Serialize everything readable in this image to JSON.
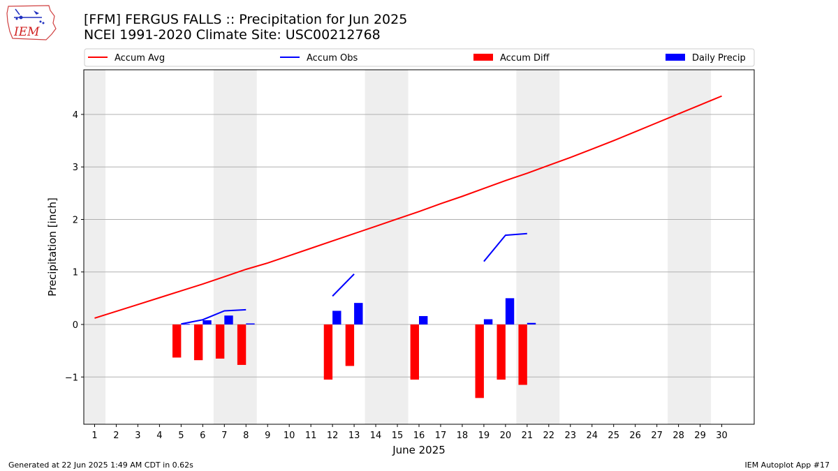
{
  "header": {
    "title": "[FFM] FERGUS FALLS :: Precipitation for Jun 2025",
    "subtitle": "NCEI 1991-2020 Climate Site: USC00212768",
    "logo_text": "IEM",
    "logo_icon": "iowa-state-outline-weather-icon"
  },
  "footer": {
    "generated": "Generated at 22 Jun 2025 1:49 AM CDT in 0.62s",
    "app": "IEM Autoplot App #17"
  },
  "colors": {
    "accum_avg": "#ff0000",
    "accum_obs": "#0000ff",
    "accum_diff": "#ff0000",
    "daily_precip": "#0000ff",
    "weekend_shade": "#eeeeee",
    "grid": "#b0b0b0"
  },
  "chart_data": {
    "type": "bar",
    "title": "[FFM] FERGUS FALLS :: Precipitation for Jun 2025",
    "subtitle": "NCEI 1991-2020 Climate Site: USC00212768",
    "xlabel": "June 2025",
    "ylabel": "Precipitation [inch]",
    "xlim": [
      0.5,
      31.5
    ],
    "ylim": [
      -1.9,
      4.85
    ],
    "yticks": [
      -1,
      0,
      1,
      2,
      3,
      4
    ],
    "ytick_labels": [
      "−1",
      "0",
      "1",
      "2",
      "3",
      "4"
    ],
    "xticks": [
      1,
      2,
      3,
      4,
      5,
      6,
      7,
      8,
      9,
      10,
      11,
      12,
      13,
      14,
      15,
      16,
      17,
      18,
      19,
      20,
      21,
      22,
      23,
      24,
      25,
      26,
      27,
      28,
      29,
      30
    ],
    "xtick_labels": [
      "1",
      "2",
      "3",
      "4",
      "5",
      "6",
      "7",
      "8",
      "9",
      "10",
      "11",
      "12",
      "13",
      "14",
      "15",
      "16",
      "17",
      "18",
      "19",
      "20",
      "21",
      "22",
      "23",
      "24",
      "25",
      "26",
      "27",
      "28",
      "29",
      "30"
    ],
    "grid": "horizontal",
    "legend_position": "top",
    "weekend_days": [
      1,
      7,
      8,
      14,
      15,
      21,
      22,
      28,
      29
    ],
    "series": [
      {
        "name": "Accum Avg",
        "kind": "line",
        "x": [
          1,
          2,
          3,
          4,
          5,
          6,
          7,
          8,
          9,
          10,
          11,
          12,
          13,
          14,
          15,
          16,
          17,
          18,
          19,
          20,
          21,
          22,
          23,
          24,
          25,
          26,
          27,
          28,
          29,
          30
        ],
        "values": [
          0.12,
          0.25,
          0.38,
          0.51,
          0.64,
          0.77,
          0.91,
          1.05,
          1.17,
          1.31,
          1.45,
          1.59,
          1.73,
          1.87,
          2.01,
          2.15,
          2.3,
          2.44,
          2.59,
          2.74,
          2.88,
          3.03,
          3.18,
          3.34,
          3.5,
          3.67,
          3.84,
          4.01,
          4.18,
          4.35
        ]
      },
      {
        "name": "Accum Obs",
        "kind": "line",
        "segments": [
          {
            "x": [
              5,
              6,
              7,
              8
            ],
            "values": [
              0.01,
              0.09,
              0.26,
              0.28
            ]
          },
          {
            "x": [
              12,
              13
            ],
            "values": [
              0.54,
              0.96
            ]
          },
          {
            "x": [
              19,
              20,
              21
            ],
            "values": [
              1.2,
              1.7,
              1.73
            ]
          }
        ]
      },
      {
        "name": "Accum Diff",
        "kind": "bar",
        "x": [
          5,
          6,
          7,
          8,
          12,
          13,
          16,
          19,
          20,
          21
        ],
        "values": [
          -0.63,
          -0.68,
          -0.65,
          -0.77,
          -1.05,
          -0.79,
          -1.05,
          -1.4,
          -1.05,
          -1.15
        ]
      },
      {
        "name": "Daily Precip",
        "kind": "bar",
        "x": [
          5,
          6,
          7,
          8,
          12,
          13,
          16,
          19,
          20,
          21
        ],
        "values": [
          0.01,
          0.08,
          0.17,
          0.02,
          0.26,
          0.41,
          0.16,
          0.1,
          0.5,
          0.03
        ]
      }
    ]
  }
}
